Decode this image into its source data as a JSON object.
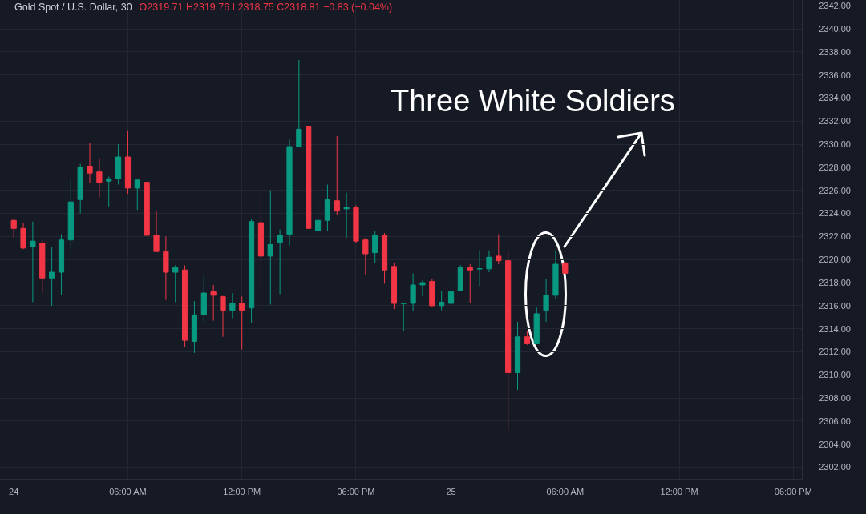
{
  "chart_data": {
    "type": "candlestick",
    "title": "Gold Spot / U.S. Dollar, 30",
    "annotations": [
      "O2319.71 H2319.76 L2318.75 C2318.81 −0.83 (−0.04%)",
      "Three White Soldiers"
    ],
    "categories": [
      "24",
      null,
      null,
      null,
      null,
      null,
      null,
      null,
      null,
      null,
      null,
      null,
      "06:00 AM",
      null,
      null,
      null,
      null,
      null,
      null,
      null,
      null,
      null,
      null,
      null,
      "12:00 PM",
      null,
      null,
      null,
      null,
      null,
      null,
      null,
      null,
      null,
      null,
      null,
      "06:00 PM",
      null,
      null,
      null,
      null,
      null,
      null,
      null,
      null,
      null,
      "25",
      null,
      null,
      null,
      null,
      null,
      null,
      null,
      null,
      null,
      null,
      null,
      "06:00 AM",
      null,
      null,
      null,
      null,
      null,
      null,
      null,
      null,
      null,
      null,
      null,
      "12:00 PM",
      null,
      null,
      null,
      null,
      null,
      null,
      null,
      null,
      null,
      null,
      null,
      "06:00 PM"
    ],
    "ohlc": [
      [
        2323.4,
        2323.6,
        2321.9,
        2322.7
      ],
      [
        2322.7,
        2323.2,
        2320.9,
        2321.0
      ],
      [
        2321.1,
        2323.3,
        2316.3,
        2321.6
      ],
      [
        2321.4,
        2321.8,
        2317.1,
        2318.4
      ],
      [
        2318.4,
        2321.1,
        2316.0,
        2318.9
      ],
      [
        2318.9,
        2322.2,
        2316.9,
        2321.7
      ],
      [
        2321.7,
        2327.0,
        2320.9,
        2325.0
      ],
      [
        2325.2,
        2328.3,
        2324.0,
        2328.0
      ],
      [
        2328.1,
        2330.1,
        2326.6,
        2327.5
      ],
      [
        2327.6,
        2328.8,
        2325.4,
        2326.7
      ],
      [
        2326.8,
        2327.2,
        2324.6,
        2327.0
      ],
      [
        2327.0,
        2330.0,
        2326.5,
        2328.9
      ],
      [
        2328.9,
        2331.2,
        2325.7,
        2326.2
      ],
      [
        2326.2,
        2327.0,
        2324.3,
        2326.9
      ],
      [
        2326.7,
        2326.7,
        2322.1,
        2322.1
      ],
      [
        2322.1,
        2324.2,
        2320.7,
        2320.7
      ],
      [
        2320.7,
        2322.0,
        2316.5,
        2318.9
      ],
      [
        2318.9,
        2319.5,
        2316.3,
        2319.3
      ],
      [
        2319.1,
        2319.5,
        2312.4,
        2313.0
      ],
      [
        2312.9,
        2316.4,
        2311.9,
        2315.2
      ],
      [
        2315.2,
        2318.6,
        2314.5,
        2317.1
      ],
      [
        2317.2,
        2317.8,
        2314.7,
        2316.9
      ],
      [
        2316.8,
        2316.8,
        2313.3,
        2315.6
      ],
      [
        2315.6,
        2317.1,
        2314.9,
        2316.2
      ],
      [
        2316.2,
        2316.8,
        2312.2,
        2315.6
      ],
      [
        2315.8,
        2323.5,
        2314.5,
        2323.3
      ],
      [
        2323.2,
        2325.7,
        2317.4,
        2320.3
      ],
      [
        2320.3,
        2326.0,
        2316.1,
        2321.3
      ],
      [
        2321.5,
        2322.6,
        2317.0,
        2322.1
      ],
      [
        2322.2,
        2330.4,
        2321.2,
        2329.8
      ],
      [
        2329.8,
        2337.3,
        2329.8,
        2331.3
      ],
      [
        2331.5,
        2331.5,
        2322.7,
        2322.7
      ],
      [
        2322.5,
        2325.6,
        2322.0,
        2323.4
      ],
      [
        2323.4,
        2326.5,
        2322.5,
        2325.2
      ],
      [
        2325.1,
        2330.7,
        2323.9,
        2324.2
      ],
      [
        2324.4,
        2325.8,
        2321.9,
        2324.5
      ],
      [
        2324.5,
        2324.7,
        2321.4,
        2321.6
      ],
      [
        2321.7,
        2321.9,
        2318.7,
        2320.5
      ],
      [
        2320.6,
        2322.5,
        2319.7,
        2322.1
      ],
      [
        2322.1,
        2322.3,
        2317.9,
        2319.1
      ],
      [
        2319.4,
        2319.7,
        2315.7,
        2316.2
      ],
      [
        2316.2,
        2316.2,
        2313.8,
        2316.2
      ],
      [
        2316.2,
        2318.8,
        2315.5,
        2317.8
      ],
      [
        2317.8,
        2318.2,
        2316.8,
        2318.0
      ],
      [
        2318.1,
        2318.3,
        2315.9,
        2316.0
      ],
      [
        2316.0,
        2317.3,
        2315.6,
        2316.3
      ],
      [
        2316.2,
        2318.6,
        2315.5,
        2317.2
      ],
      [
        2317.3,
        2319.5,
        2317.3,
        2319.3
      ],
      [
        2319.3,
        2319.6,
        2316.2,
        2319.1
      ],
      [
        2319.2,
        2320.8,
        2317.7,
        2319.2
      ],
      [
        2319.2,
        2320.8,
        2318.9,
        2320.2
      ],
      [
        2320.3,
        2322.2,
        2319.6,
        2319.9
      ],
      [
        2319.9,
        2320.8,
        2305.2,
        2310.2
      ],
      [
        2310.2,
        2314.6,
        2308.7,
        2313.3
      ],
      [
        2313.3,
        2313.8,
        2312.6,
        2312.7
      ],
      [
        2312.7,
        2315.9,
        2312.7,
        2315.3
      ],
      [
        2315.6,
        2318.3,
        2314.6,
        2316.9
      ],
      [
        2316.9,
        2320.8,
        2316.6,
        2319.6
      ],
      [
        2319.71,
        2319.76,
        2318.75,
        2318.81
      ],
      null,
      null,
      null,
      null,
      null,
      null,
      null,
      null,
      null,
      null,
      null,
      null,
      null,
      null,
      null,
      null,
      null,
      null,
      null,
      null,
      null,
      null,
      null,
      null
    ],
    "colors": [
      "#f23645",
      "#f23645",
      "#089981",
      "#f23645",
      "#089981",
      "#089981",
      "#089981",
      "#089981",
      "#f23645",
      "#f23645",
      "#089981",
      "#089981",
      "#f23645",
      "#089981",
      "#f23645",
      "#f23645",
      "#f23645",
      "#089981",
      "#f23645",
      "#089981",
      "#089981",
      "#f23645",
      "#f23645",
      "#089981",
      "#f23645",
      "#089981",
      "#f23645",
      "#089981",
      "#089981",
      "#089981",
      "#089981",
      "#f23645",
      "#089981",
      "#089981",
      "#f23645",
      "#089981",
      "#f23645",
      "#f23645",
      "#089981",
      "#f23645",
      "#f23645",
      "#089981",
      "#089981",
      "#089981",
      "#f23645",
      "#089981",
      "#089981",
      "#089981",
      "#f23645",
      "#089981",
      "#089981",
      "#f23645",
      "#f23645",
      "#089981",
      "#f23645",
      "#089981",
      "#089981",
      "#089981",
      "#f23645",
      null,
      null,
      null,
      null,
      null,
      null,
      null,
      null,
      null,
      null,
      null,
      null,
      null,
      null,
      null,
      null,
      null,
      null,
      null,
      null,
      null,
      null,
      null,
      null
    ],
    "ylim": [
      2301,
      2342.5
    ],
    "yticks": [
      {
        "value": 2302,
        "label": "2302.00"
      },
      {
        "value": 2304,
        "label": "2304.00"
      },
      {
        "value": 2306,
        "label": "2306.00"
      },
      {
        "value": 2308,
        "label": "2308.00"
      },
      {
        "value": 2310,
        "label": "2310.00"
      },
      {
        "value": 2312,
        "label": "2312.00"
      },
      {
        "value": 2314,
        "label": "2314.00"
      },
      {
        "value": 2316,
        "label": "2316.00"
      },
      {
        "value": 2318,
        "label": "2318.00"
      },
      {
        "value": 2320,
        "label": "2320.00"
      },
      {
        "value": 2322,
        "label": "2322.00"
      },
      {
        "value": 2324,
        "label": "2324.00"
      },
      {
        "value": 2326,
        "label": "2326.00"
      },
      {
        "value": 2328,
        "label": "2328.00"
      },
      {
        "value": 2330,
        "label": "2330.00"
      },
      {
        "value": 2332,
        "label": "2332.00"
      },
      {
        "value": 2334,
        "label": "2334.00"
      },
      {
        "value": 2336,
        "label": "2336.00"
      },
      {
        "value": 2338,
        "label": "2338.00"
      },
      {
        "value": 2340,
        "label": "2340.00"
      },
      {
        "value": 2342,
        "label": "2342.00"
      }
    ],
    "grid": true
  }
}
